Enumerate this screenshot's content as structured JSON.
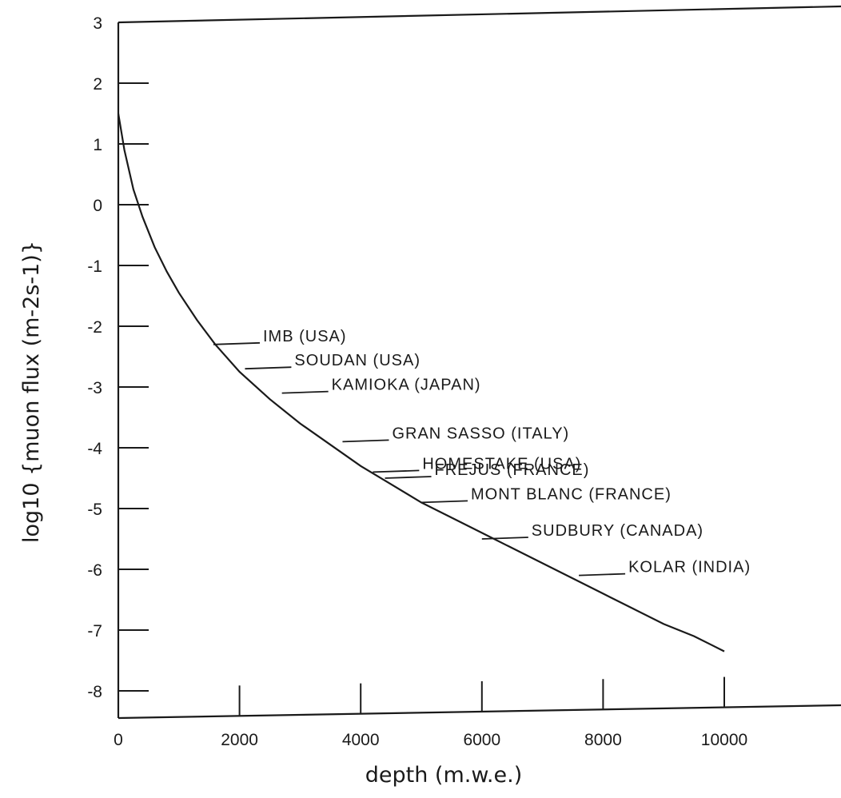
{
  "chart_data": {
    "type": "line",
    "title": "",
    "xlabel": "depth (m.w.e.)",
    "ylabel": "log10 {muon flux (m-2s-1)}",
    "xlim": [
      0,
      12000
    ],
    "ylim": [
      -8.5,
      3
    ],
    "x_ticks": [
      0,
      2000,
      4000,
      6000,
      8000,
      10000
    ],
    "y_ticks": [
      3,
      2,
      1,
      0,
      -1,
      -2,
      -3,
      -4,
      -5,
      -6,
      -7,
      -8
    ],
    "grid": false,
    "legend": "none",
    "series": [
      {
        "x": [
          0,
          100,
          250,
          400,
          600,
          800,
          1000,
          1300,
          1600,
          2000,
          2500,
          3000,
          3500,
          4000,
          4500,
          5000,
          5500,
          6000,
          6500,
          7000,
          7500,
          8000,
          8500,
          9000,
          9500,
          10000
        ],
        "y": [
          1.5,
          0.9,
          0.25,
          -0.2,
          -0.7,
          -1.1,
          -1.45,
          -1.9,
          -2.3,
          -2.75,
          -3.2,
          -3.6,
          -3.95,
          -4.3,
          -4.6,
          -4.9,
          -5.15,
          -5.4,
          -5.65,
          -5.9,
          -6.15,
          -6.4,
          -6.65,
          -6.9,
          -7.1,
          -7.35
        ]
      }
    ],
    "annotations": [
      {
        "label": "IMB (USA)",
        "depth": 1570,
        "log_flux": -2.3
      },
      {
        "label": "SOUDAN (USA)",
        "depth": 2090,
        "log_flux": -2.7
      },
      {
        "label": "KAMIOKA (JAPAN)",
        "depth": 2700,
        "log_flux": -3.1
      },
      {
        "label": "GRAN SASSO (ITALY)",
        "depth": 3700,
        "log_flux": -3.9
      },
      {
        "label": "HOMESTAKE (USA)",
        "depth": 4200,
        "log_flux": -4.4
      },
      {
        "label": "FREJUS (FRANCE)",
        "depth": 4400,
        "log_flux": -4.5
      },
      {
        "label": "MONT BLANC (FRANCE)",
        "depth": 5000,
        "log_flux": -4.9
      },
      {
        "label": "SUDBURY (CANADA)",
        "depth": 6000,
        "log_flux": -5.5
      },
      {
        "label": "KOLAR (INDIA)",
        "depth": 7600,
        "log_flux": -6.1
      }
    ]
  }
}
